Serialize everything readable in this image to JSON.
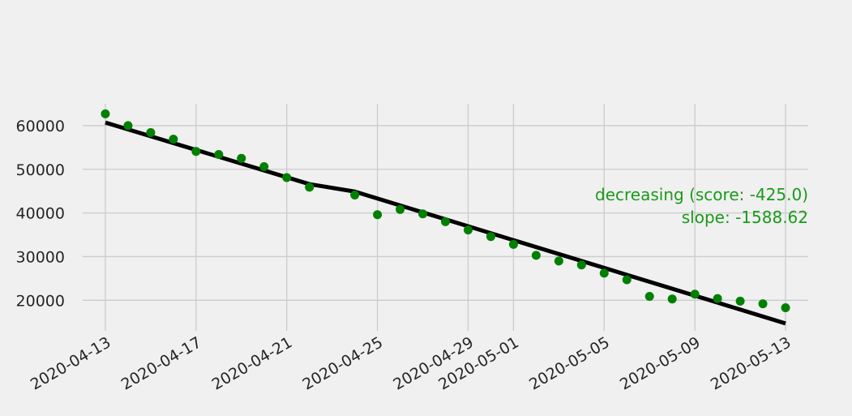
{
  "chart_data": {
    "type": "scatter",
    "title": "",
    "xlabel": "",
    "ylabel": "",
    "x_ticks": [
      "2020-04-13",
      "2020-04-17",
      "2020-04-21",
      "2020-04-25",
      "2020-04-29",
      "2020-05-01",
      "2020-05-05",
      "2020-05-09",
      "2020-05-13"
    ],
    "y_ticks": [
      20000,
      30000,
      40000,
      50000,
      60000
    ],
    "xlim": [
      "2020-04-12",
      "2020-05-14"
    ],
    "ylim": [
      13000,
      65000
    ],
    "grid": true,
    "series": [
      {
        "kind": "scatter",
        "color": "#008000",
        "points": [
          {
            "x": "2020-04-13",
            "y": 62700
          },
          {
            "x": "2020-04-14",
            "y": 60000
          },
          {
            "x": "2020-04-15",
            "y": 58400
          },
          {
            "x": "2020-04-16",
            "y": 56900
          },
          {
            "x": "2020-04-17",
            "y": 54100
          },
          {
            "x": "2020-04-18",
            "y": 53400
          },
          {
            "x": "2020-04-19",
            "y": 52500
          },
          {
            "x": "2020-04-20",
            "y": 50600
          },
          {
            "x": "2020-04-21",
            "y": 48100
          },
          {
            "x": "2020-04-22",
            "y": 45900
          },
          {
            "x": "2020-04-24",
            "y": 44100
          },
          {
            "x": "2020-04-25",
            "y": 39600
          },
          {
            "x": "2020-04-26",
            "y": 40800
          },
          {
            "x": "2020-04-27",
            "y": 39800
          },
          {
            "x": "2020-04-28",
            "y": 38000
          },
          {
            "x": "2020-04-29",
            "y": 36100
          },
          {
            "x": "2020-04-30",
            "y": 34600
          },
          {
            "x": "2020-05-01",
            "y": 32800
          },
          {
            "x": "2020-05-02",
            "y": 30300
          },
          {
            "x": "2020-05-03",
            "y": 29000
          },
          {
            "x": "2020-05-04",
            "y": 28100
          },
          {
            "x": "2020-05-05",
            "y": 26200
          },
          {
            "x": "2020-05-06",
            "y": 24700
          },
          {
            "x": "2020-05-07",
            "y": 20900
          },
          {
            "x": "2020-05-08",
            "y": 20300
          },
          {
            "x": "2020-05-09",
            "y": 21400
          },
          {
            "x": "2020-05-10",
            "y": 20400
          },
          {
            "x": "2020-05-11",
            "y": 19800
          },
          {
            "x": "2020-05-12",
            "y": 19200
          },
          {
            "x": "2020-05-13",
            "y": 18300
          }
        ]
      },
      {
        "kind": "line",
        "color": "#000000",
        "points": [
          {
            "x": "2020-04-13",
            "y": 60700
          },
          {
            "x": "2020-04-22",
            "y": 46600
          },
          {
            "x": "2020-04-24",
            "y": 44900
          },
          {
            "x": "2020-05-13",
            "y": 14700
          }
        ]
      }
    ],
    "annotations": [
      "decreasing (score: -425.0)",
      "slope: -1588.62"
    ],
    "annotation_color": "#1a9a1a"
  }
}
